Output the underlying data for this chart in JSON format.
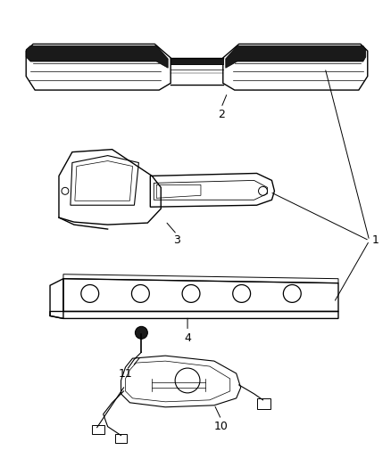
{
  "bg_color": "#ffffff",
  "line_color": "#000000",
  "dark_color": "#1a1a1a",
  "fig_width": 4.38,
  "fig_height": 5.33,
  "dpi": 100
}
